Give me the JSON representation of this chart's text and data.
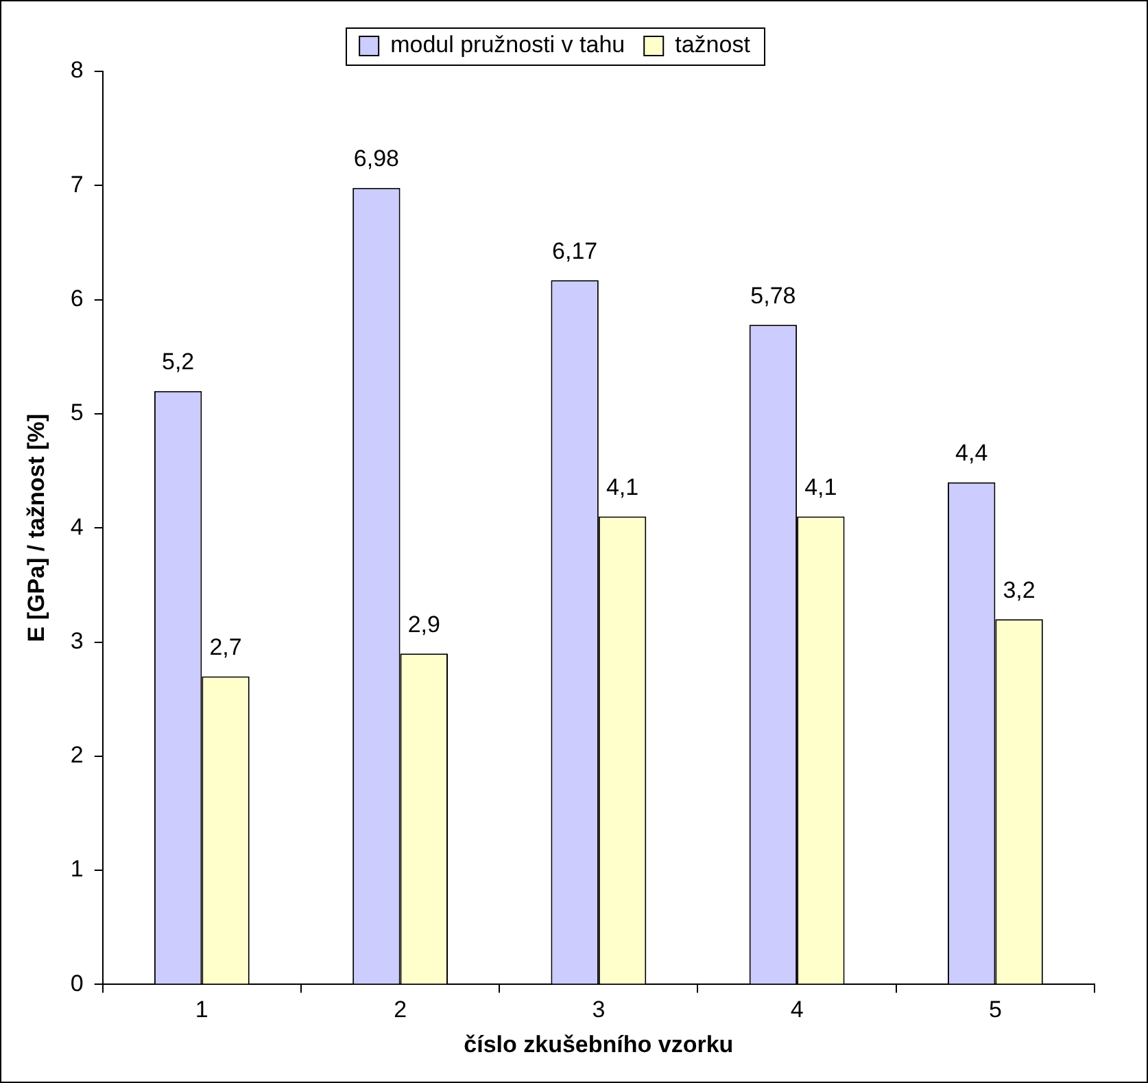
{
  "chart_data": {
    "type": "bar",
    "xlabel": "číslo zkušebního vzorku",
    "ylabel": "E [GPa] / tažnost [%]",
    "categories": [
      "1",
      "2",
      "3",
      "4",
      "5"
    ],
    "series": [
      {
        "name": "modul pružnosti v tahu",
        "color": "#ccccff",
        "values": [
          5.2,
          6.98,
          6.17,
          5.78,
          4.4
        ],
        "value_labels": [
          "5,2",
          "6,98",
          "6,17",
          "5,78",
          "4,4"
        ]
      },
      {
        "name": "tažnost",
        "color": "#ffffcc",
        "values": [
          2.7,
          2.9,
          4.1,
          4.1,
          3.2
        ],
        "value_labels": [
          "2,7",
          "2,9",
          "4,1",
          "4,1",
          "3,2"
        ]
      }
    ],
    "ylim": [
      0,
      8
    ],
    "yticks": [
      0,
      1,
      2,
      3,
      4,
      5,
      6,
      7,
      8
    ],
    "legend": "top"
  }
}
